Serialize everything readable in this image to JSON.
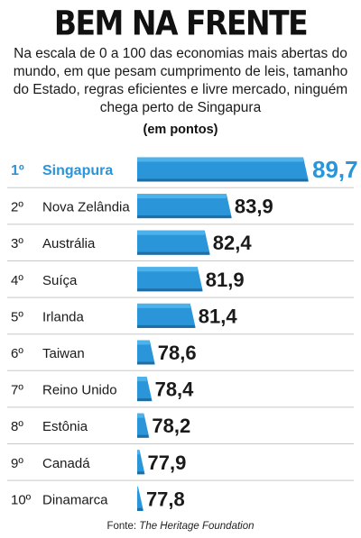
{
  "title": "BEM NA FRENTE",
  "subtitle": "Na escala de 0 a 100 das economias mais abertas do mundo, em que pesam cumprimento de leis, tamanho do Estado, regras eficientes e livre mercado, ninguém chega perto de Singapura",
  "unit_label": "(em pontos)",
  "source": {
    "prefix": "Fonte: ",
    "name": "The Heritage Foundation"
  },
  "colors": {
    "bar": "#2a95d8",
    "bar_top": "#4cb2ec",
    "bar_shadow": "#1f6da3",
    "highlight_text": "#2a95d8",
    "text": "#1a1a1a",
    "divider": "#c8c8c8"
  },
  "chart_data": {
    "type": "bar",
    "orientation": "horizontal",
    "ranks": [
      "1º",
      "2º",
      "3º",
      "4º",
      "5º",
      "6º",
      "7º",
      "8º",
      "9º",
      "10º"
    ],
    "categories": [
      "Singapura",
      "Nova Zelândia",
      "Austrália",
      "Suíça",
      "Irlanda",
      "Taiwan",
      "Reino Unido",
      "Estônia",
      "Canadá",
      "Dinamarca"
    ],
    "values": [
      89.7,
      83.9,
      82.4,
      81.9,
      81.4,
      78.6,
      78.4,
      78.2,
      77.9,
      77.8
    ],
    "value_labels": [
      "89,7",
      "83,9",
      "82,4",
      "81,9",
      "81,4",
      "78,6",
      "78,4",
      "78,2",
      "77,9",
      "77,8"
    ],
    "highlight_index": 0,
    "scale": [
      0,
      100
    ]
  }
}
